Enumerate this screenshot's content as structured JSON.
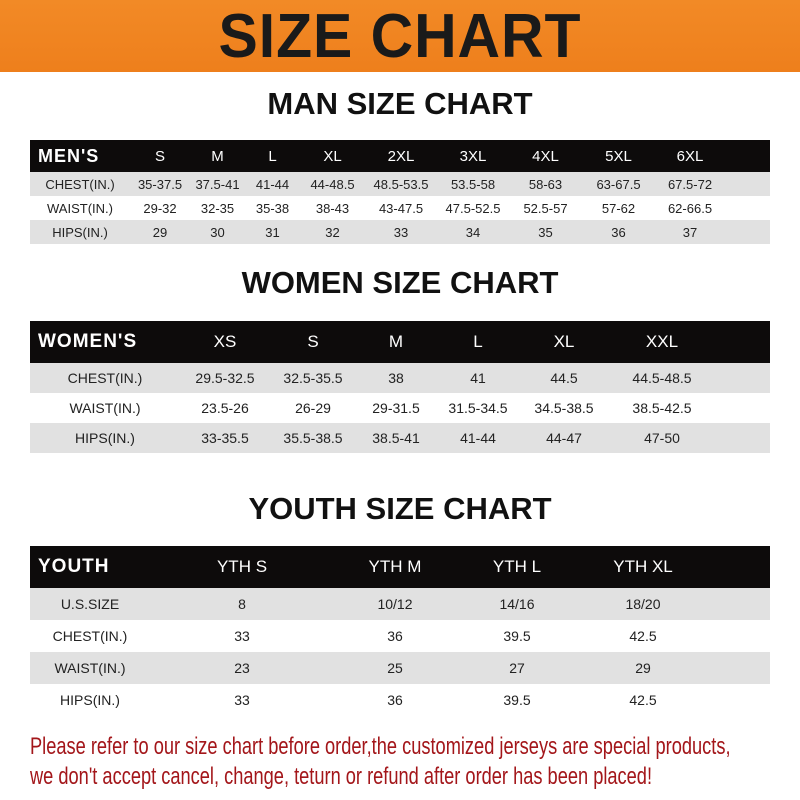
{
  "banner": "SIZE CHART",
  "men": {
    "title": "MAN SIZE CHART",
    "header": [
      "MEN'S",
      "S",
      "M",
      "L",
      "XL",
      "2XL",
      "3XL",
      "4XL",
      "5XL",
      "6XL"
    ],
    "rows": [
      [
        "CHEST(IN.)",
        "35-37.5",
        "37.5-41",
        "41-44",
        "44-48.5",
        "48.5-53.5",
        "53.5-58",
        "58-63",
        "63-67.5",
        "67.5-72"
      ],
      [
        "WAIST(IN.)",
        "29-32",
        "32-35",
        "35-38",
        "38-43",
        "43-47.5",
        "47.5-52.5",
        "52.5-57",
        "57-62",
        "62-66.5"
      ],
      [
        "HIPS(IN.)",
        "29",
        "30",
        "31",
        "32",
        "33",
        "34",
        "35",
        "36",
        "37"
      ]
    ]
  },
  "women": {
    "title": "WOMEN SIZE CHART",
    "header": [
      "WOMEN'S",
      "XS",
      "S",
      "M",
      "L",
      "XL",
      "XXL"
    ],
    "rows": [
      [
        "CHEST(IN.)",
        "29.5-32.5",
        "32.5-35.5",
        "38",
        "41",
        "44.5",
        "44.5-48.5"
      ],
      [
        "WAIST(IN.)",
        "23.5-26",
        "26-29",
        "29-31.5",
        "31.5-34.5",
        "34.5-38.5",
        "38.5-42.5"
      ],
      [
        "HIPS(IN.)",
        "33-35.5",
        "35.5-38.5",
        "38.5-41",
        "41-44",
        "44-47",
        "47-50"
      ]
    ]
  },
  "youth": {
    "title": "YOUTH SIZE CHART",
    "header": [
      "YOUTH",
      "YTH S",
      "YTH M",
      "YTH L",
      "YTH XL"
    ],
    "rows": [
      [
        "U.S.SIZE",
        "8",
        "10/12",
        "14/16",
        "18/20"
      ],
      [
        "CHEST(IN.)",
        "33",
        "36",
        "39.5",
        "42.5"
      ],
      [
        "WAIST(IN.)",
        "23",
        "25",
        "27",
        "29"
      ],
      [
        "HIPS(IN.)",
        "33",
        "36",
        "39.5",
        "42.5"
      ]
    ]
  },
  "note": [
    "Please refer to our size chart before order,the customized jerseys are special products,",
    "we don't accept cancel, change, teturn or refund after order has been placed!"
  ],
  "colors": {
    "banner": "#f08526",
    "header_row": "#0d0b0b",
    "stripe": "#e1e1e1",
    "note": "#a3161a"
  }
}
